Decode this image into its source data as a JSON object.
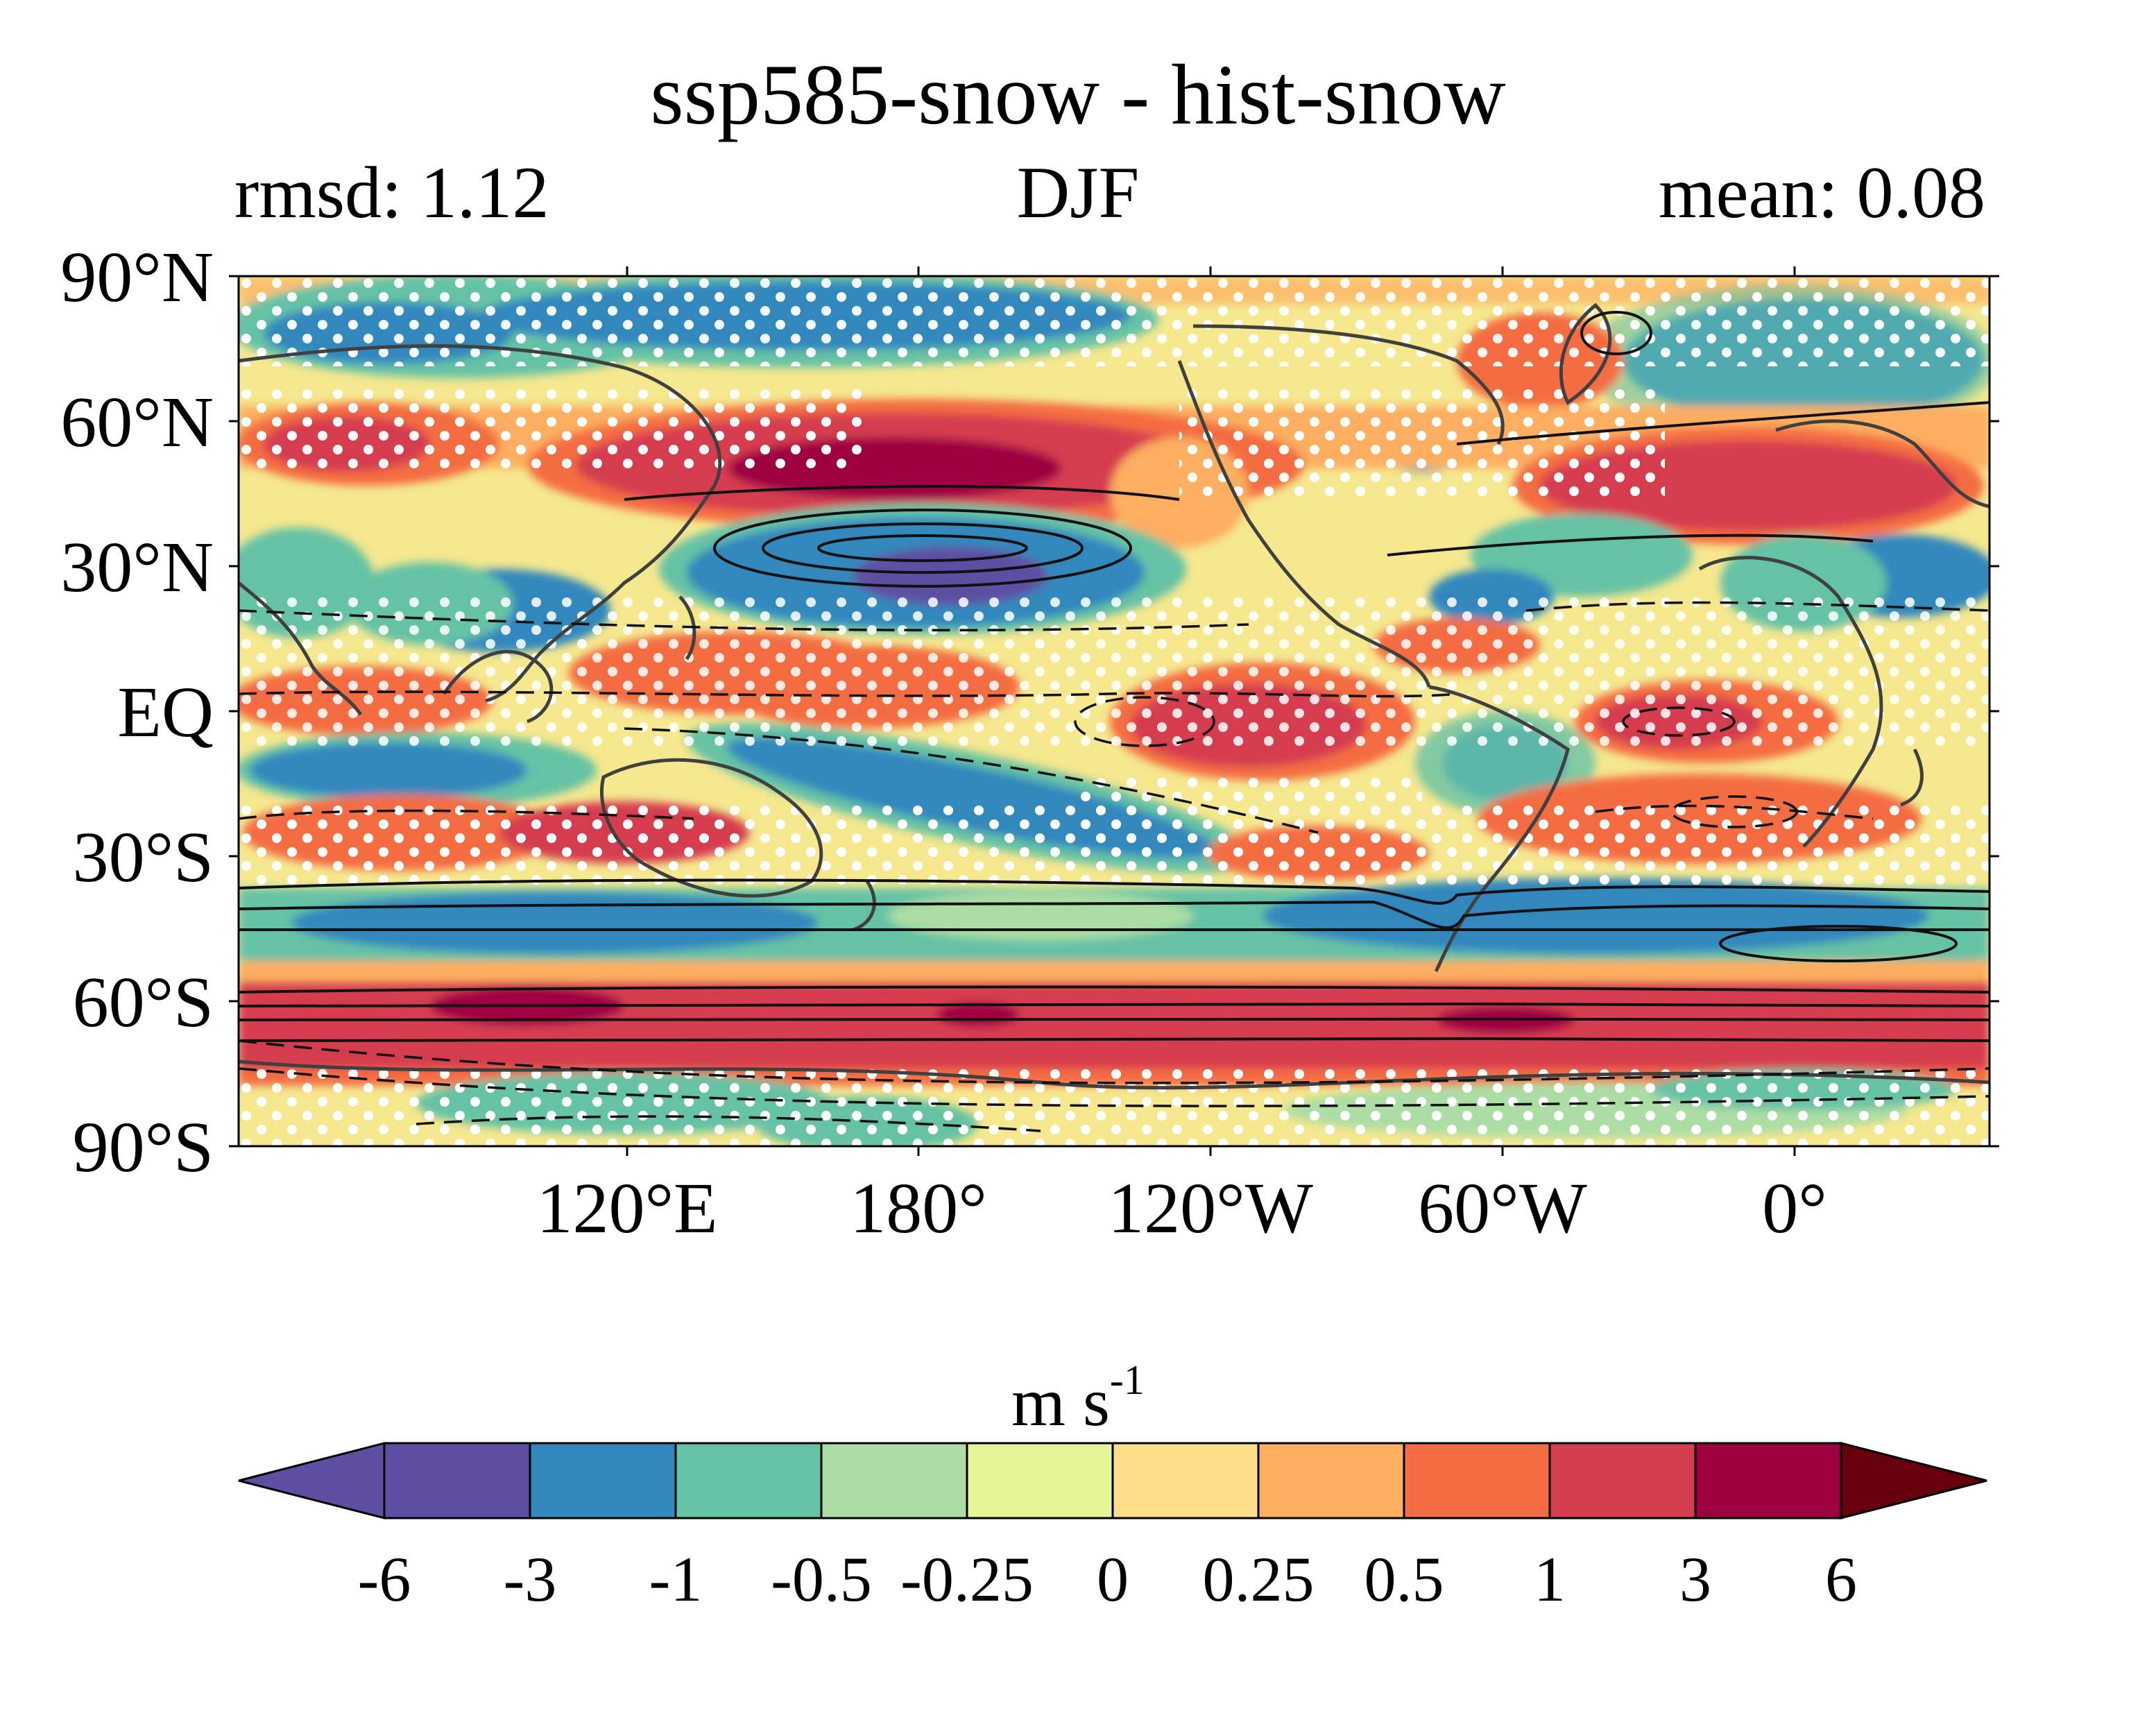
{
  "figure": {
    "title": "ssp585-snow - hist-snow",
    "subtitle_left": "rmsd: 1.12",
    "subtitle_center": "DJF",
    "subtitle_right": "mean: 0.08"
  },
  "map": {
    "projection": "PlateCarree",
    "central_longitude": 210,
    "extent_lon": [
      30,
      390
    ],
    "extent_lat": [
      -90,
      90
    ],
    "lat_ticks": [
      "90°N",
      "60°N",
      "30°N",
      "EQ",
      "30°S",
      "60°S",
      "90°S"
    ],
    "lon_ticks": [
      "120°E",
      "180°",
      "120°W",
      "60°W",
      "0°"
    ],
    "stippling": "white dots mark significant grid points",
    "contours": "black lines, solid positive, dashed negative (climatology)",
    "coastline_color": "#404040"
  },
  "colorbar": {
    "label": "m s",
    "label_exponent": "-1",
    "levels": [
      "-6",
      "-3",
      "-1",
      "-0.5",
      "-0.25",
      "0",
      "0.25",
      "0.5",
      "1",
      "3",
      "6"
    ],
    "colors": [
      "#5e4fa2",
      "#3288bd",
      "#66c2a5",
      "#abdda4",
      "#e6f598",
      "#fee08b",
      "#fdae61",
      "#f46d43",
      "#d53e4f",
      "#9e0142"
    ],
    "extend_low_color": "#5e4fa2",
    "extend_high_color": "#67000d"
  }
}
